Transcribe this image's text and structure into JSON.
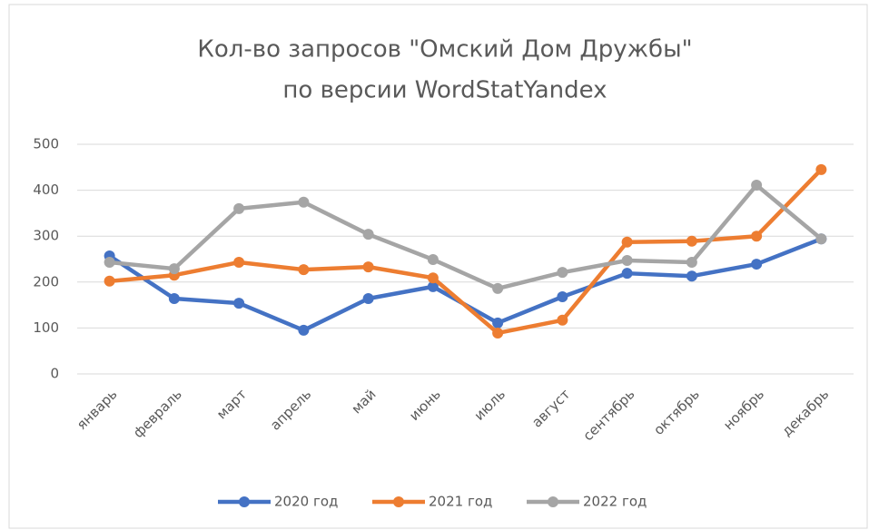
{
  "chart_data": {
    "type": "line",
    "title": [
      "Кол-во запросов \"Омский Дом Дружбы\"",
      "по версии WordStatYandex"
    ],
    "categories": [
      "январь",
      "февраль",
      "март",
      "апрель",
      "май",
      "июнь",
      "июль",
      "август",
      "сентябрь",
      "октябрь",
      "ноябрь",
      "декабрь"
    ],
    "series": [
      {
        "name": "2020 год",
        "color": "#4472c4",
        "values": [
          257,
          164,
          154,
          95,
          164,
          190,
          111,
          168,
          219,
          213,
          239,
          294
        ]
      },
      {
        "name": "2021 год",
        "color": "#ed7d31",
        "values": [
          202,
          215,
          243,
          227,
          233,
          209,
          89,
          117,
          287,
          289,
          300,
          445
        ]
      },
      {
        "name": "2022 год",
        "color": "#a5a5a5",
        "values": [
          243,
          229,
          360,
          374,
          304,
          249,
          186,
          221,
          247,
          243,
          411,
          294
        ]
      }
    ],
    "ylim": [
      0,
      500
    ],
    "yticks": [
      0,
      100,
      200,
      300,
      400,
      500
    ],
    "grid": true,
    "legend": "bottom"
  }
}
